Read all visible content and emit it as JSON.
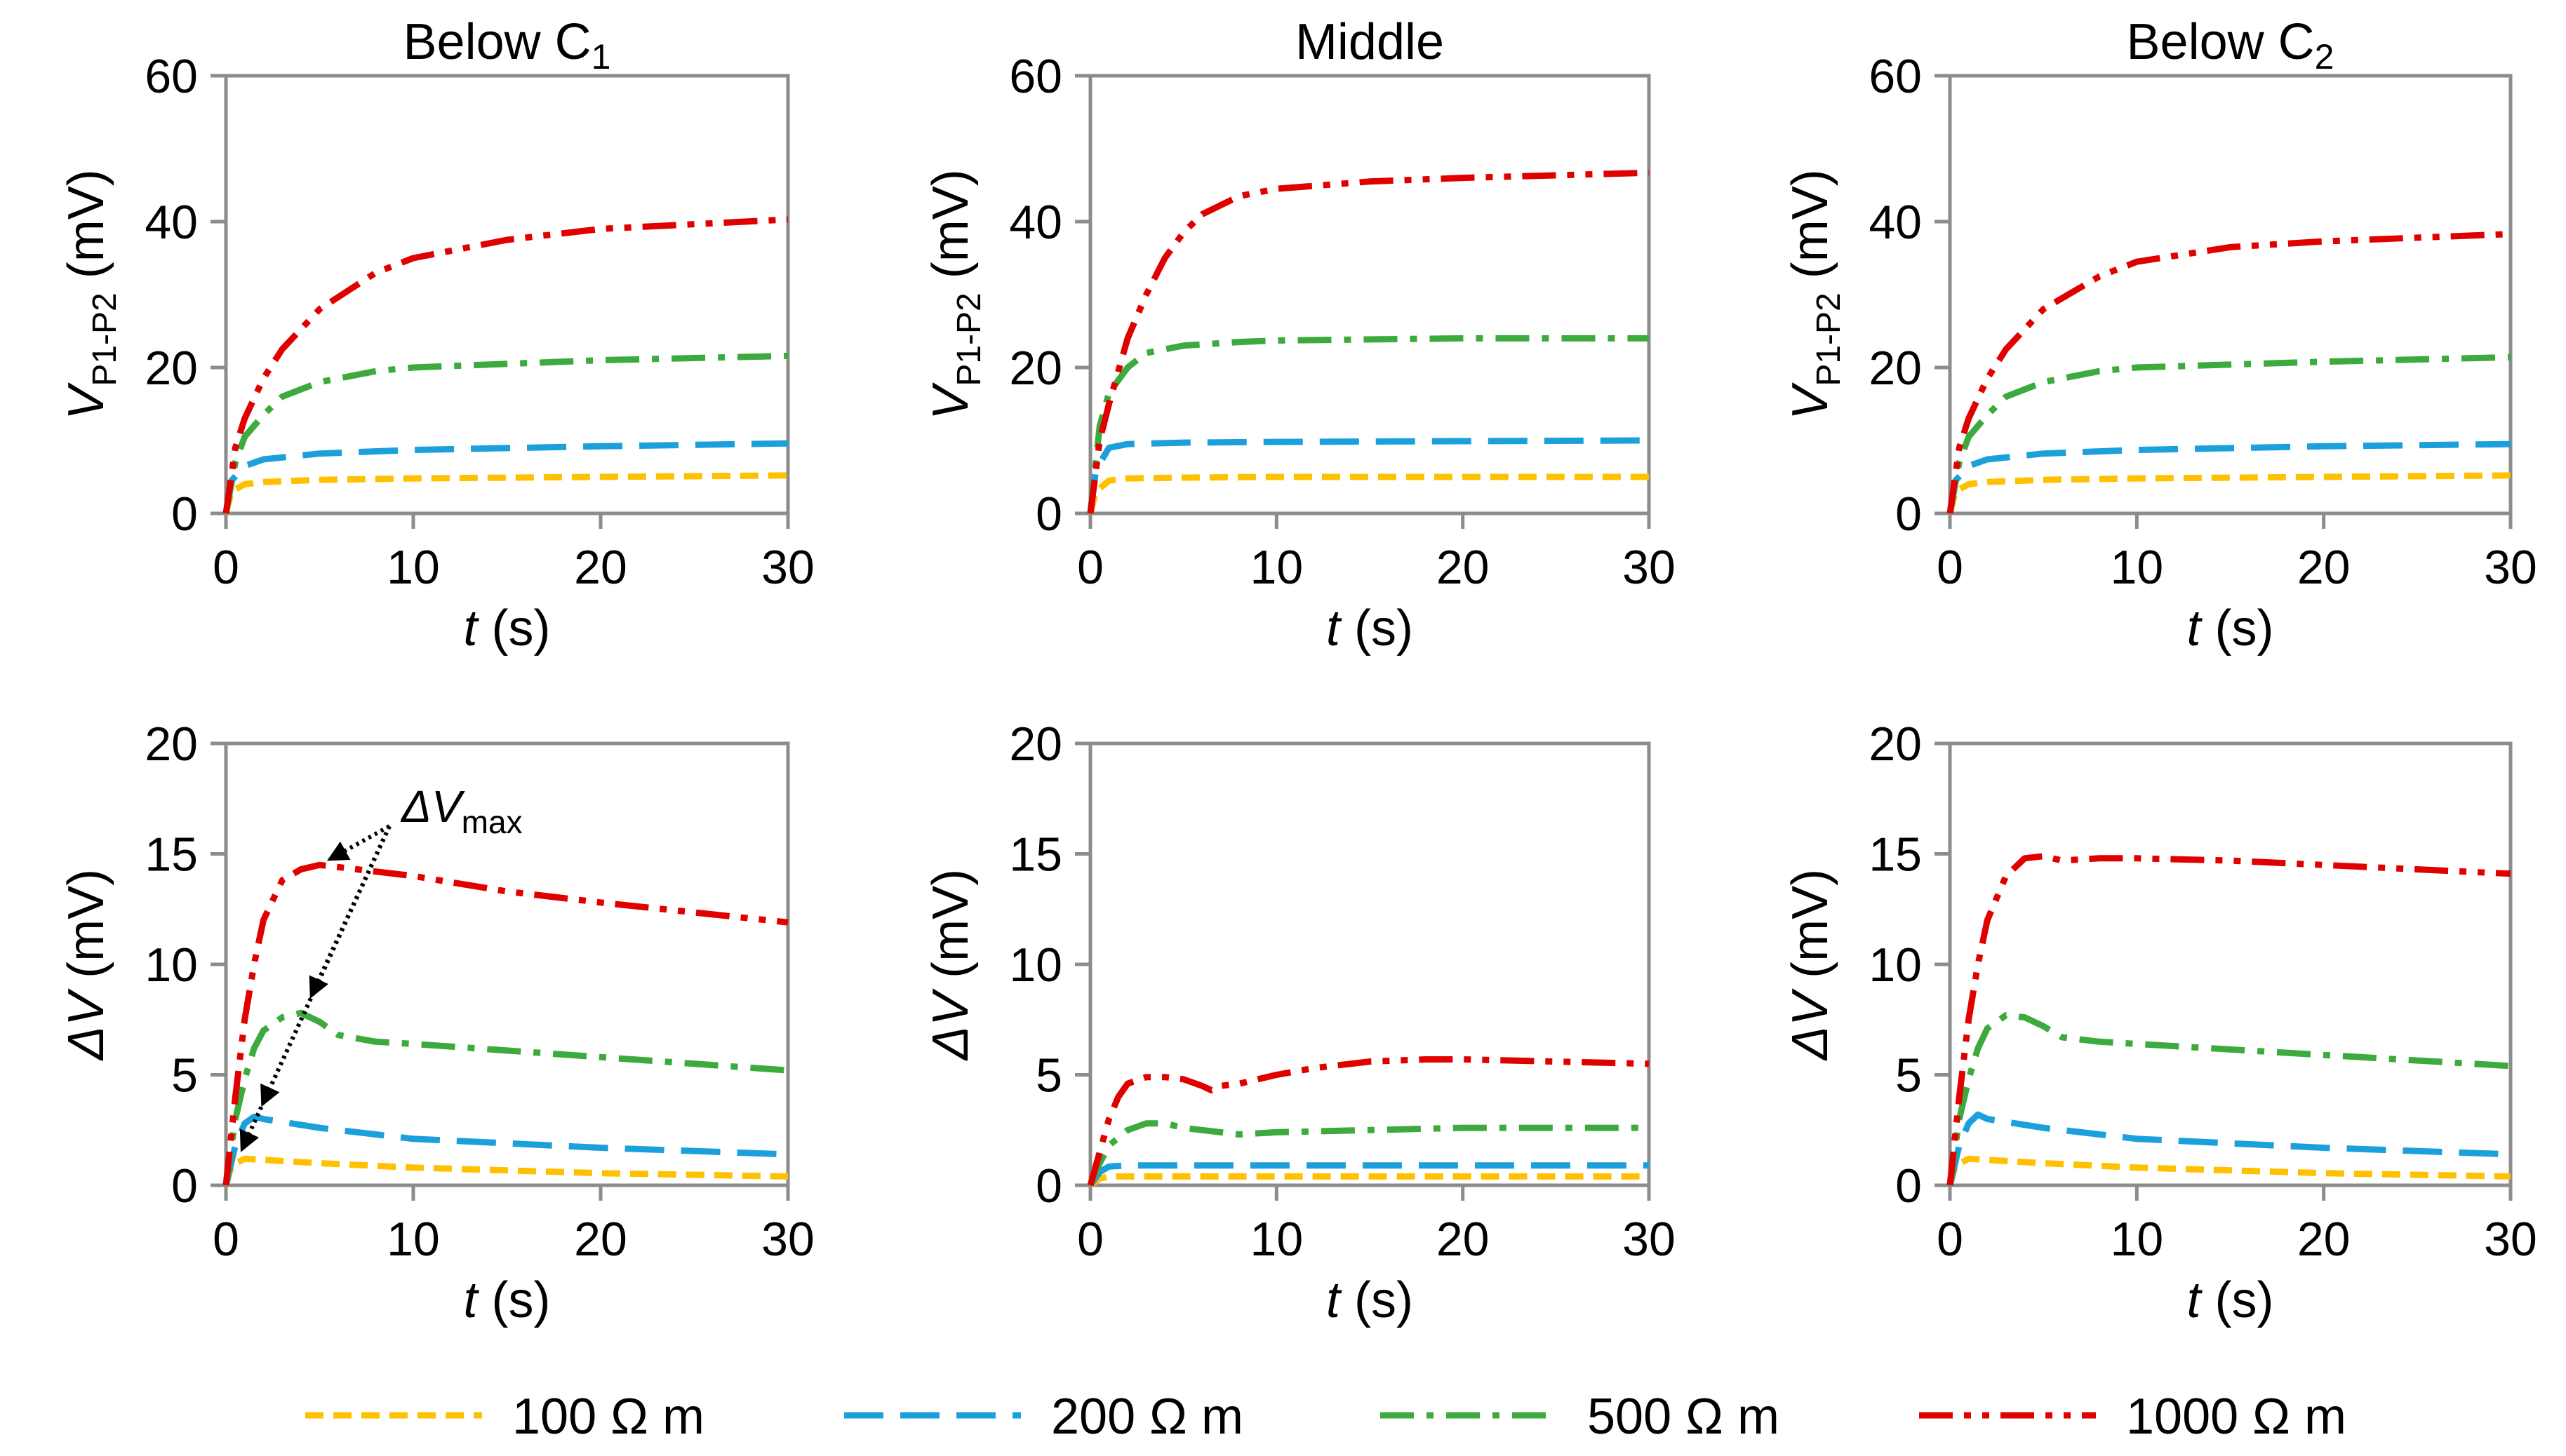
{
  "figure": {
    "legend": [
      {
        "label": "100 Ω m",
        "color": "#FFC000",
        "dash": "dash-short"
      },
      {
        "label": "200 Ω m",
        "color": "#1CA0DC",
        "dash": "dash-long"
      },
      {
        "label": "500 Ω m",
        "color": "#3DAA3D",
        "dash": "dash-dot"
      },
      {
        "label": "1000 Ω m",
        "color": "#E00000",
        "dash": "dash-dot-dot"
      }
    ],
    "annotation": {
      "text_main": "ΔV",
      "text_sub": "max"
    }
  },
  "chart_data": [
    {
      "type": "line",
      "id": "top-left",
      "title": "Below C",
      "title_sub": "1",
      "xlabel": "t (s)",
      "xlabel_var": "t",
      "xlabel_unit": " (s)",
      "ylabel_var": "V",
      "ylabel_sub": "P1-P2",
      "ylabel_unit": " (mV)",
      "xlim": [
        0,
        30
      ],
      "ylim": [
        0,
        60
      ],
      "xticks": [
        0,
        10,
        20,
        30
      ],
      "yticks": [
        0,
        20,
        40,
        60
      ],
      "grid": false,
      "series": [
        {
          "name": "100 Ω m",
          "x": [
            0,
            0.3,
            1,
            2,
            5,
            10,
            20,
            30
          ],
          "y": [
            0,
            3,
            4,
            4.3,
            4.6,
            4.8,
            5,
            5.2
          ]
        },
        {
          "name": "200 Ω m",
          "x": [
            0,
            0.3,
            1,
            2,
            5,
            10,
            20,
            30
          ],
          "y": [
            0,
            4.5,
            6.5,
            7.4,
            8.2,
            8.7,
            9.2,
            9.6
          ]
        },
        {
          "name": "500 Ω m",
          "x": [
            0,
            0.5,
            1,
            2,
            3,
            5,
            8,
            10,
            20,
            30
          ],
          "y": [
            0,
            7,
            10.5,
            13.5,
            16,
            18,
            19.5,
            20,
            21,
            21.6
          ]
        },
        {
          "name": "1000 Ω m",
          "x": [
            0,
            0.5,
            1,
            2,
            3,
            5,
            8,
            10,
            15,
            20,
            30
          ],
          "y": [
            0,
            9,
            13,
            18.5,
            22.5,
            28,
            33,
            35,
            37.5,
            39,
            40.3
          ]
        }
      ]
    },
    {
      "type": "line",
      "id": "top-middle",
      "title": "Middle",
      "title_sub": "",
      "xlabel": "t (s)",
      "xlabel_var": "t",
      "xlabel_unit": " (s)",
      "ylabel_var": "V",
      "ylabel_sub": "P1-P2",
      "ylabel_unit": " (mV)",
      "xlim": [
        0,
        30
      ],
      "ylim": [
        0,
        60
      ],
      "xticks": [
        0,
        10,
        20,
        30
      ],
      "yticks": [
        0,
        20,
        40,
        60
      ],
      "grid": false,
      "series": [
        {
          "name": "100 Ω m",
          "x": [
            0,
            0.3,
            1,
            2,
            5,
            10,
            20,
            30
          ],
          "y": [
            0,
            3,
            4.5,
            4.8,
            4.9,
            5,
            5,
            5
          ]
        },
        {
          "name": "200 Ω m",
          "x": [
            0,
            0.3,
            1,
            2,
            5,
            10,
            20,
            30
          ],
          "y": [
            0,
            6,
            9,
            9.5,
            9.7,
            9.8,
            9.9,
            10
          ]
        },
        {
          "name": "500 Ω m",
          "x": [
            0,
            0.5,
            1,
            2,
            3,
            5,
            8,
            10,
            20,
            30
          ],
          "y": [
            0,
            12,
            16.5,
            20,
            22,
            23,
            23.5,
            23.7,
            24,
            24
          ]
        },
        {
          "name": "1000 Ω m",
          "x": [
            0,
            0.5,
            1,
            2,
            3,
            4,
            5,
            6,
            8,
            10,
            15,
            20,
            30
          ],
          "y": [
            0,
            10,
            15,
            24,
            30,
            35,
            38.5,
            41,
            43.5,
            44.5,
            45.5,
            46,
            46.7
          ]
        }
      ]
    },
    {
      "type": "line",
      "id": "top-right",
      "title": "Below C",
      "title_sub": "2",
      "xlabel": "t (s)",
      "xlabel_var": "t",
      "xlabel_unit": " (s)",
      "ylabel_var": "V",
      "ylabel_sub": "P1-P2",
      "ylabel_unit": " (mV)",
      "xlim": [
        0,
        30
      ],
      "ylim": [
        0,
        60
      ],
      "xticks": [
        0,
        10,
        20,
        30
      ],
      "yticks": [
        0,
        20,
        40,
        60
      ],
      "grid": false,
      "series": [
        {
          "name": "100 Ω m",
          "x": [
            0,
            0.3,
            1,
            2,
            5,
            10,
            20,
            30
          ],
          "y": [
            0,
            3,
            4,
            4.3,
            4.6,
            4.8,
            5,
            5.2
          ]
        },
        {
          "name": "200 Ω m",
          "x": [
            0,
            0.3,
            1,
            2,
            5,
            10,
            20,
            30
          ],
          "y": [
            0,
            4.5,
            6.5,
            7.4,
            8.2,
            8.7,
            9.2,
            9.5
          ]
        },
        {
          "name": "500 Ω m",
          "x": [
            0,
            0.5,
            1,
            2,
            3,
            5,
            8,
            10,
            20,
            30
          ],
          "y": [
            0,
            7,
            10.5,
            13.5,
            16,
            18,
            19.5,
            20,
            20.8,
            21.4
          ]
        },
        {
          "name": "1000 Ω m",
          "x": [
            0,
            0.5,
            1,
            2,
            3,
            5,
            8,
            10,
            15,
            20,
            30
          ],
          "y": [
            0,
            9,
            13,
            18.5,
            22.5,
            28,
            32.5,
            34.5,
            36.5,
            37.3,
            38.3
          ]
        }
      ]
    },
    {
      "type": "line",
      "id": "bottom-left",
      "title": "",
      "title_sub": "",
      "xlabel": "t (s)",
      "xlabel_var": "t",
      "xlabel_unit": " (s)",
      "ylabel_var": "ΔV",
      "ylabel_sub": "",
      "ylabel_unit": " (mV)",
      "xlim": [
        0,
        30
      ],
      "ylim": [
        0,
        20
      ],
      "xticks": [
        0,
        10,
        20,
        30
      ],
      "yticks": [
        0,
        5,
        10,
        15,
        20
      ],
      "grid": false,
      "series": [
        {
          "name": "100 Ω m",
          "x": [
            0,
            0.3,
            1,
            2,
            5,
            10,
            20,
            30
          ],
          "y": [
            0,
            0.9,
            1.2,
            1.15,
            1,
            0.8,
            0.55,
            0.4
          ]
        },
        {
          "name": "200 Ω m",
          "x": [
            0,
            0.5,
            1,
            1.5,
            2,
            5,
            10,
            20,
            30
          ],
          "y": [
            0,
            1.8,
            2.8,
            3.1,
            3.0,
            2.6,
            2.1,
            1.7,
            1.4
          ]
        },
        {
          "name": "500 Ω m",
          "x": [
            0,
            0.5,
            1,
            1.5,
            2,
            3,
            4,
            5,
            6,
            8,
            10,
            20,
            30
          ],
          "y": [
            0,
            3,
            4.8,
            6.2,
            7,
            7.6,
            7.8,
            7.4,
            6.8,
            6.5,
            6.4,
            5.8,
            5.2
          ]
        },
        {
          "name": "1000 Ω m",
          "x": [
            0,
            0.5,
            1,
            1.5,
            2,
            3,
            4,
            5,
            6,
            8,
            10,
            15,
            20,
            30
          ],
          "y": [
            0,
            4,
            7.5,
            10,
            12,
            13.8,
            14.3,
            14.5,
            14.4,
            14.2,
            14,
            13.3,
            12.8,
            11.9
          ]
        }
      ]
    },
    {
      "type": "line",
      "id": "bottom-middle",
      "title": "",
      "title_sub": "",
      "xlabel": "t (s)",
      "xlabel_var": "t",
      "xlabel_unit": " (s)",
      "ylabel_var": "ΔV",
      "ylabel_sub": "",
      "ylabel_unit": " (mV)",
      "xlim": [
        0,
        30
      ],
      "ylim": [
        0,
        20
      ],
      "xticks": [
        0,
        10,
        20,
        30
      ],
      "yticks": [
        0,
        5,
        10,
        15,
        20
      ],
      "grid": false,
      "series": [
        {
          "name": "100 Ω m",
          "x": [
            0,
            0.5,
            1,
            2,
            5,
            10,
            20,
            30
          ],
          "y": [
            0,
            0.3,
            0.4,
            0.4,
            0.4,
            0.4,
            0.4,
            0.4
          ]
        },
        {
          "name": "200 Ω m",
          "x": [
            0,
            0.5,
            1,
            2,
            5,
            10,
            20,
            30
          ],
          "y": [
            0,
            0.6,
            0.85,
            0.9,
            0.9,
            0.9,
            0.9,
            0.9
          ]
        },
        {
          "name": "500 Ω m",
          "x": [
            0,
            0.5,
            1,
            2,
            3,
            4,
            5,
            6,
            8,
            10,
            15,
            20,
            30
          ],
          "y": [
            0,
            1,
            1.8,
            2.5,
            2.8,
            2.8,
            2.6,
            2.5,
            2.3,
            2.4,
            2.5,
            2.6,
            2.6
          ]
        },
        {
          "name": "1000 Ω m",
          "x": [
            0,
            0.5,
            1,
            1.5,
            2,
            3,
            4,
            5,
            6,
            6.5,
            7,
            8,
            10,
            12,
            15,
            18,
            20,
            25,
            30
          ],
          "y": [
            0,
            1.5,
            3,
            4,
            4.6,
            4.9,
            4.9,
            4.8,
            4.5,
            4.3,
            4.5,
            4.6,
            5,
            5.3,
            5.6,
            5.7,
            5.7,
            5.6,
            5.5
          ]
        }
      ]
    },
    {
      "type": "line",
      "id": "bottom-right",
      "title": "",
      "title_sub": "",
      "xlabel": "t (s)",
      "xlabel_var": "t",
      "xlabel_unit": " (s)",
      "ylabel_var": "ΔV",
      "ylabel_sub": "",
      "ylabel_unit": " (mV)",
      "xlim": [
        0,
        30
      ],
      "ylim": [
        0,
        20
      ],
      "xticks": [
        0,
        10,
        20,
        30
      ],
      "yticks": [
        0,
        5,
        10,
        15,
        20
      ],
      "grid": false,
      "series": [
        {
          "name": "100 Ω m",
          "x": [
            0,
            0.3,
            1,
            2,
            5,
            10,
            20,
            30
          ],
          "y": [
            0,
            0.9,
            1.2,
            1.15,
            1,
            0.8,
            0.55,
            0.4
          ]
        },
        {
          "name": "200 Ω m",
          "x": [
            0,
            0.5,
            1,
            1.5,
            2,
            5,
            10,
            20,
            30
          ],
          "y": [
            0,
            1.8,
            2.8,
            3.2,
            3.0,
            2.6,
            2.1,
            1.7,
            1.4
          ]
        },
        {
          "name": "500 Ω m",
          "x": [
            0,
            0.5,
            1,
            1.5,
            2,
            3,
            4,
            5,
            6,
            8,
            10,
            20,
            30
          ],
          "y": [
            0,
            3,
            4.8,
            6.2,
            7.1,
            7.7,
            7.6,
            7.2,
            6.7,
            6.5,
            6.4,
            5.9,
            5.4
          ]
        },
        {
          "name": "1000 Ω m",
          "x": [
            0,
            0.5,
            1,
            1.5,
            2,
            3,
            4,
            5,
            6,
            8,
            10,
            15,
            20,
            30
          ],
          "y": [
            0,
            4,
            7.5,
            10,
            12,
            14,
            14.8,
            14.9,
            14.7,
            14.8,
            14.8,
            14.7,
            14.5,
            14.1
          ]
        }
      ]
    }
  ]
}
